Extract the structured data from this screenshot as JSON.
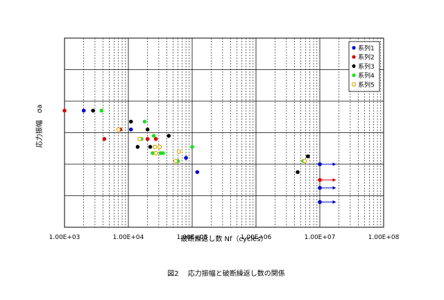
{
  "chart_data": {
    "type": "scatter",
    "xscale": "log",
    "xlim": [
      1000,
      100000000
    ],
    "ylim": [
      0,
      6
    ],
    "xlabel": "破断繰返し数 Nf（cycles）",
    "ylabel": "応力振幅　σa",
    "caption": "図2　 応力振幅と破断繰返し数の関係",
    "x_tick_labels": [
      "1.00E+03",
      "1.00E+04",
      "1.00E+05",
      "1.00E+06",
      "1.00E+07",
      "1.00E+08"
    ],
    "grid": true,
    "legend_position": "top-right",
    "series": [
      {
        "name": "系列1",
        "color": "#0000cc",
        "marker": "filled",
        "points": [
          [
            2000,
            3.7
          ],
          [
            11000,
            3.1
          ],
          [
            120000,
            1.75
          ],
          [
            80000,
            2.2
          ],
          [
            10000000,
            2.0
          ],
          [
            10000000,
            1.25
          ],
          [
            10000000,
            0.8
          ]
        ]
      },
      {
        "name": "系列2",
        "color": "#dd0000",
        "marker": "filled",
        "points": [
          [
            1000,
            3.7
          ],
          [
            4200,
            2.8
          ],
          [
            7500,
            3.1
          ],
          [
            10000000,
            1.5
          ],
          [
            27000,
            2.8
          ],
          [
            20000,
            2.8
          ]
        ]
      },
      {
        "name": "系列3",
        "color": "#000000",
        "marker": "filled",
        "points": [
          [
            2800,
            3.7
          ],
          [
            11000,
            3.35
          ],
          [
            14000,
            2.55
          ],
          [
            20000,
            3.1
          ],
          [
            22000,
            2.55
          ],
          [
            43000,
            2.9
          ],
          [
            4500000,
            1.75
          ],
          [
            6500000,
            2.25
          ]
        ]
      },
      {
        "name": "系列4",
        "color": "#22dd22",
        "marker": "filled",
        "points": [
          [
            3800,
            3.7
          ],
          [
            18000,
            3.35
          ],
          [
            25000,
            2.9
          ],
          [
            16000,
            2.8
          ],
          [
            24000,
            2.35
          ],
          [
            32000,
            2.35
          ],
          [
            35000,
            2.35
          ],
          [
            60000,
            2.1
          ],
          [
            100000,
            2.55
          ],
          [
            5500000,
            2.1
          ]
        ]
      },
      {
        "name": "系列5",
        "color": "#e0a800",
        "marker": "hollow",
        "points": [
          [
            7000,
            3.1
          ],
          [
            15000,
            2.8
          ],
          [
            26000,
            2.55
          ],
          [
            31000,
            2.55
          ],
          [
            27000,
            2.35
          ],
          [
            62000,
            2.4
          ],
          [
            55000,
            2.1
          ],
          [
            5800000,
            2.1
          ]
        ]
      }
    ],
    "runouts": [
      {
        "x": 10000000,
        "y": 2.0,
        "color": "#0000cc",
        "to_x": 18000000
      },
      {
        "x": 10000000,
        "y": 1.5,
        "color": "#dd0000",
        "to_x": 18000000
      },
      {
        "x": 10000000,
        "y": 1.25,
        "color": "#0000cc",
        "to_x": 18000000
      },
      {
        "x": 10000000,
        "y": 0.8,
        "color": "#0000cc",
        "to_x": 18000000
      }
    ]
  }
}
